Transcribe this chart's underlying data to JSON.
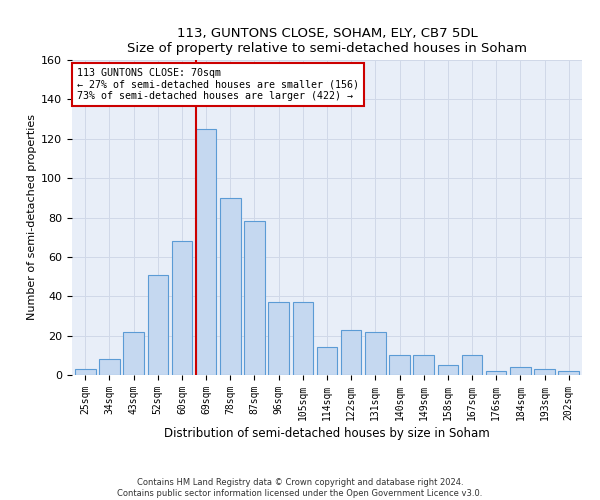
{
  "title": "113, GUNTONS CLOSE, SOHAM, ELY, CB7 5DL",
  "subtitle": "Size of property relative to semi-detached houses in Soham",
  "xlabel": "Distribution of semi-detached houses by size in Soham",
  "ylabel": "Number of semi-detached properties",
  "categories": [
    "25sqm",
    "34sqm",
    "43sqm",
    "52sqm",
    "60sqm",
    "69sqm",
    "78sqm",
    "87sqm",
    "96sqm",
    "105sqm",
    "114sqm",
    "122sqm",
    "131sqm",
    "140sqm",
    "149sqm",
    "158sqm",
    "167sqm",
    "176sqm",
    "184sqm",
    "193sqm",
    "202sqm"
  ],
  "values": [
    3,
    8,
    22,
    51,
    68,
    125,
    90,
    78,
    37,
    37,
    14,
    23,
    22,
    10,
    10,
    5,
    10,
    2,
    4,
    3,
    2
  ],
  "bar_color": "#c5d8f0",
  "bar_edge_color": "#5b9bd5",
  "property_bin_index": 5,
  "annotation_title": "113 GUNTONS CLOSE: 70sqm",
  "annotation_line1": "← 27% of semi-detached houses are smaller (156)",
  "annotation_line2": "73% of semi-detached houses are larger (422) →",
  "marker_line_color": "#cc0000",
  "ylim": [
    0,
    160
  ],
  "yticks": [
    0,
    20,
    40,
    60,
    80,
    100,
    120,
    140,
    160
  ],
  "grid_color": "#d0d8e8",
  "background_color": "#e8eef8",
  "footer_line1": "Contains HM Land Registry data © Crown copyright and database right 2024.",
  "footer_line2": "Contains public sector information licensed under the Open Government Licence v3.0."
}
